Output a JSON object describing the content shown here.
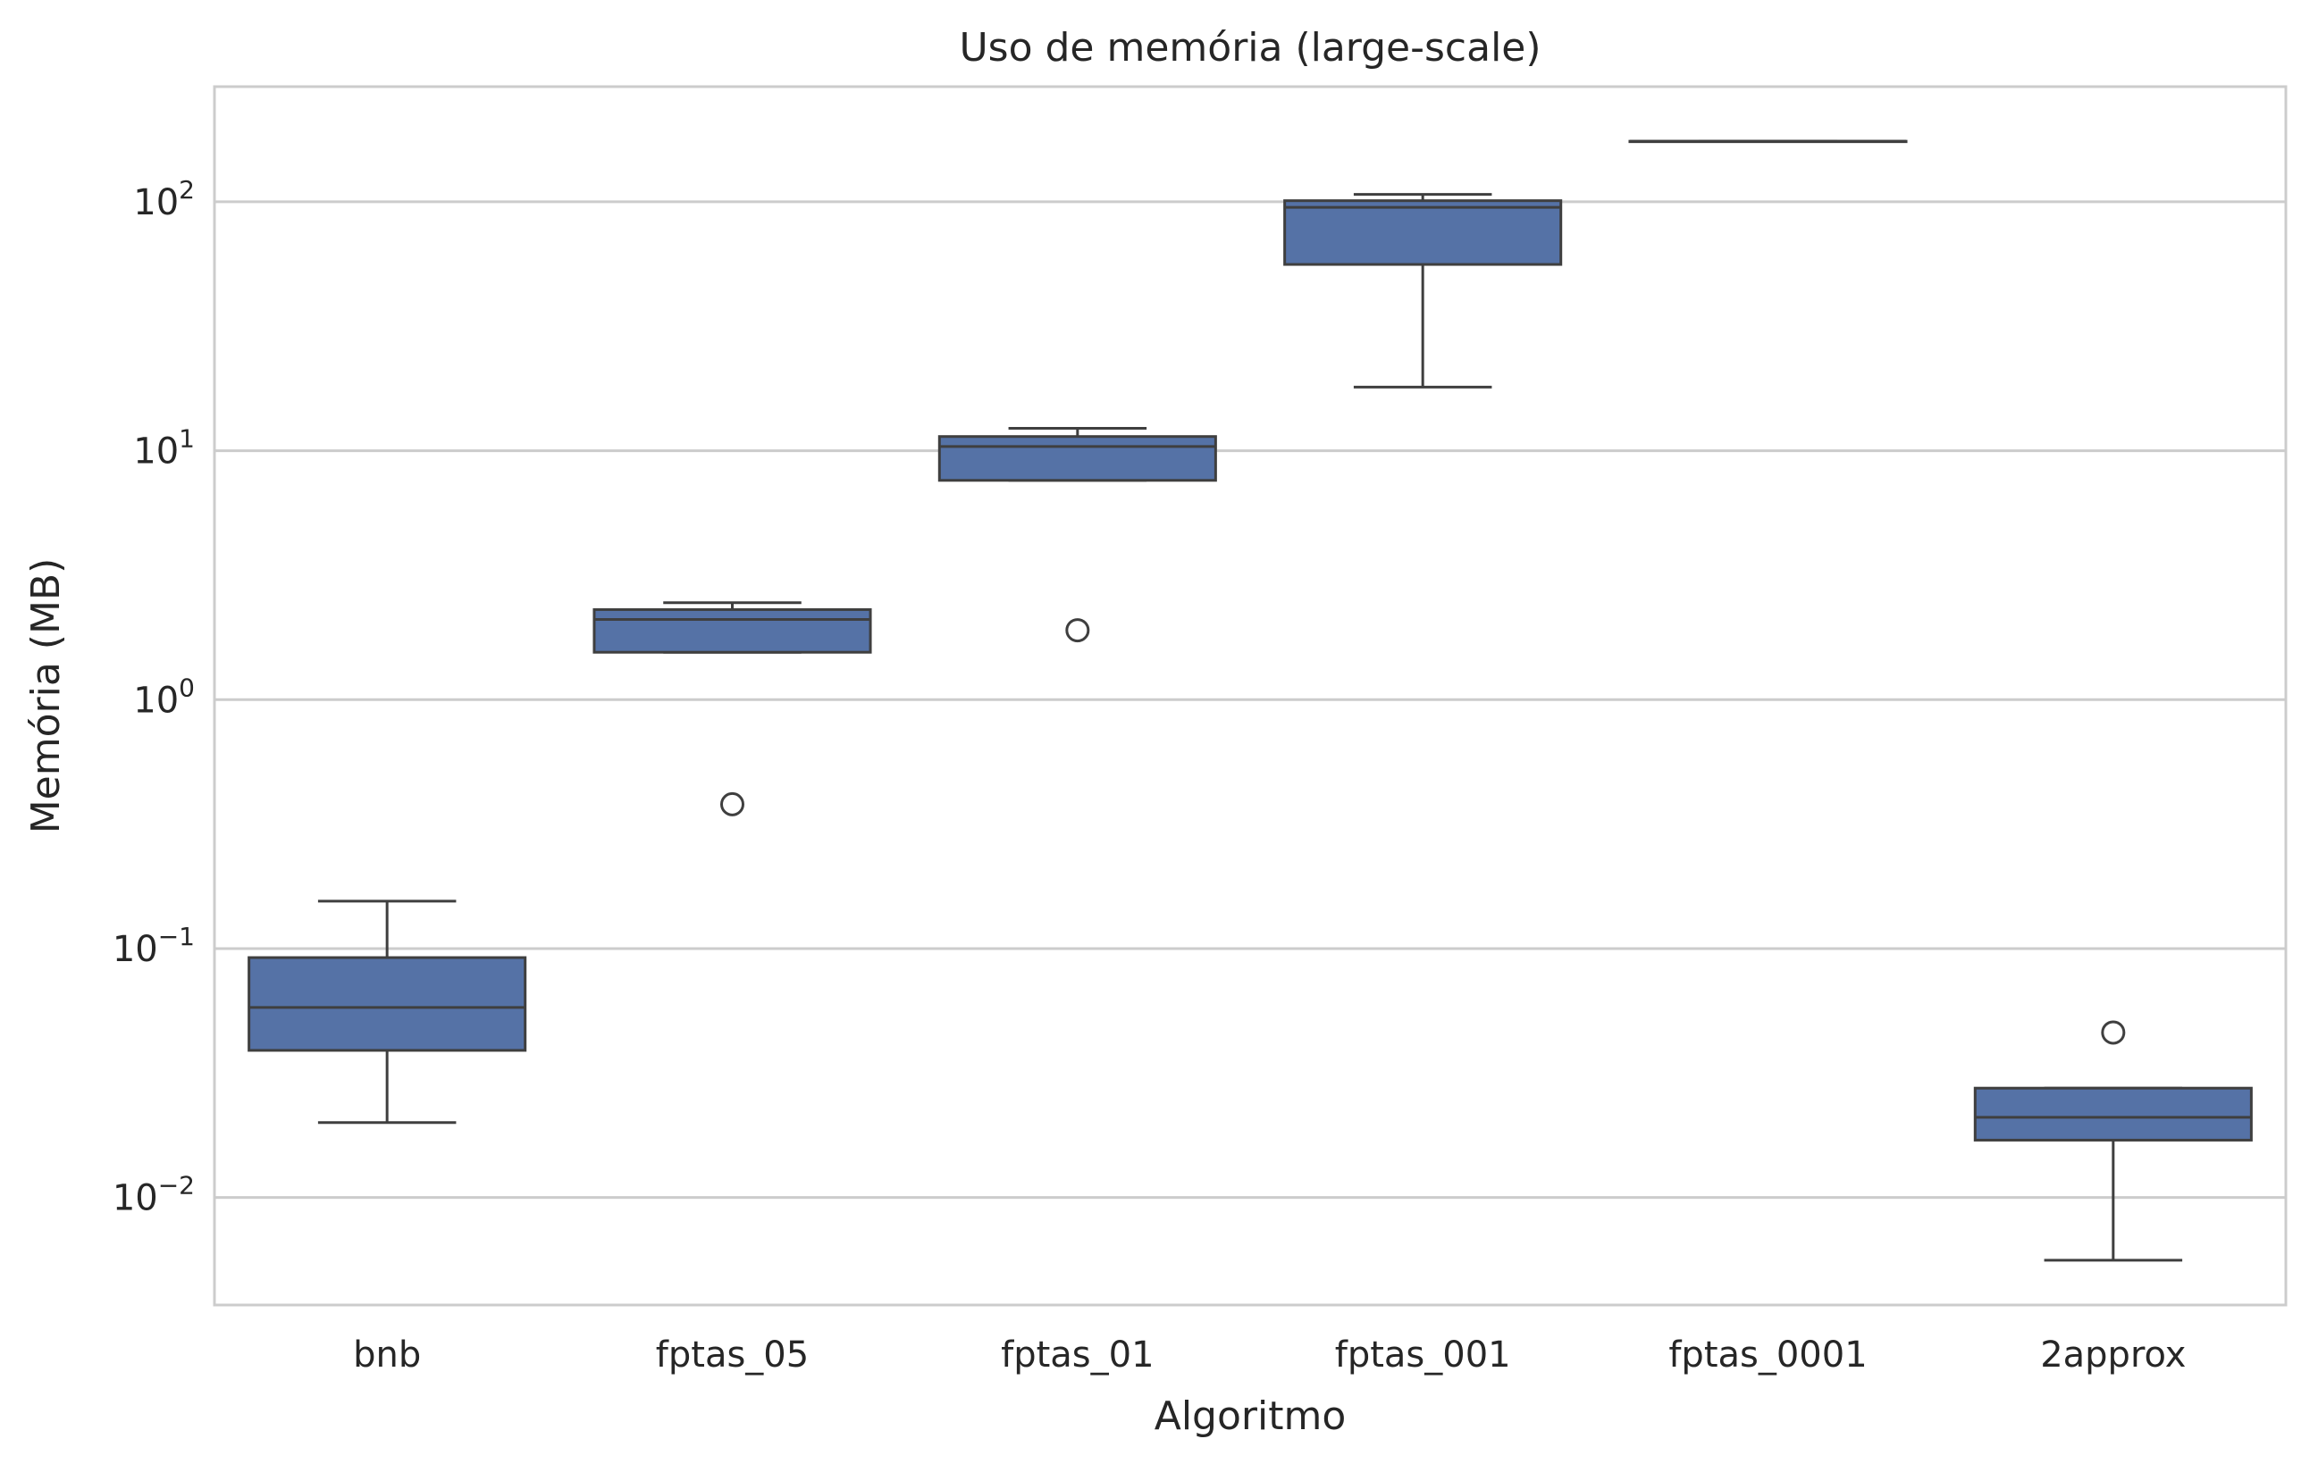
{
  "chart_data": {
    "type": "box",
    "title": "Uso de memória (large-scale)",
    "xlabel": "Algoritmo",
    "ylabel": "Memória (MB)",
    "yscale": "log",
    "ylim": [
      0.0037,
      290
    ],
    "yticks": [
      {
        "value": 0.01,
        "base": "10",
        "exp": "−2"
      },
      {
        "value": 0.1,
        "base": "10",
        "exp": "−1"
      },
      {
        "value": 1,
        "base": "10",
        "exp": "0"
      },
      {
        "value": 10,
        "base": "10",
        "exp": "1"
      },
      {
        "value": 100,
        "base": "10",
        "exp": "2"
      }
    ],
    "grid": "horizontal",
    "legend": "none",
    "box_color": "#5572a6",
    "edge_color": "#3f3f3f",
    "categories": [
      "bnb",
      "fptas_05",
      "fptas_01",
      "fptas_001",
      "fptas_0001",
      "2approx"
    ],
    "boxes": [
      {
        "category": "bnb",
        "whisker_low": 0.02,
        "q1": 0.039,
        "median": 0.058,
        "q3": 0.092,
        "whisker_high": 0.155,
        "outliers": []
      },
      {
        "category": "fptas_05",
        "whisker_low": 1.55,
        "q1": 1.55,
        "median": 2.1,
        "q3": 2.3,
        "whisker_high": 2.45,
        "outliers": [
          0.38
        ]
      },
      {
        "category": "fptas_01",
        "whisker_low": 7.6,
        "q1": 7.6,
        "median": 10.4,
        "q3": 11.4,
        "whisker_high": 12.3,
        "outliers": [
          1.9
        ]
      },
      {
        "category": "fptas_001",
        "whisker_low": 18,
        "q1": 56,
        "median": 95,
        "q3": 101,
        "whisker_high": 107,
        "outliers": []
      },
      {
        "category": "fptas_0001",
        "whisker_low": 175,
        "q1": 175,
        "median": 175,
        "q3": 175,
        "whisker_high": 175,
        "outliers": []
      },
      {
        "category": "2approx",
        "whisker_low": 0.0056,
        "q1": 0.017,
        "median": 0.021,
        "q3": 0.0275,
        "whisker_high": 0.0275,
        "outliers": [
          0.046
        ]
      }
    ]
  }
}
